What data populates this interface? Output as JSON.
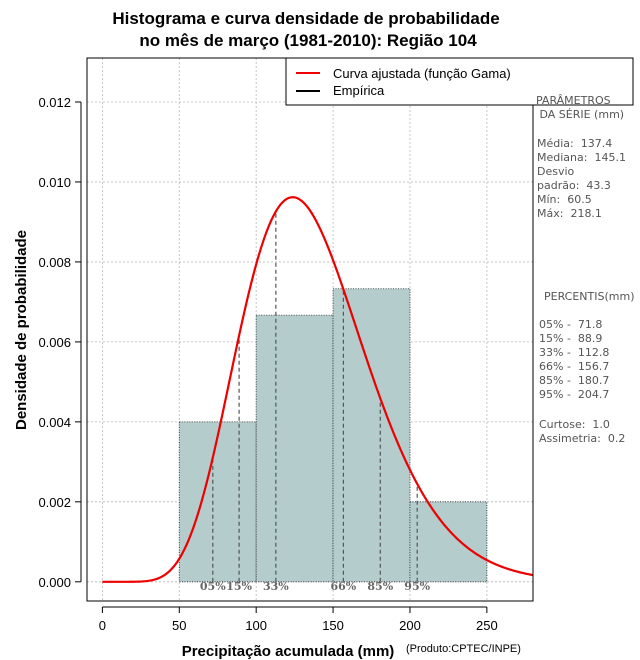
{
  "chart_data": {
    "type": "bar",
    "title": [
      "Histograma e curva densidade de probabilidade",
      "no mês de março (1981-2010): Região 104"
    ],
    "xlabel": "Precipitação acumulada (mm)",
    "ylabel": "Densidade de probabilidade",
    "credit": "(Produto:CPTEC/INPE)",
    "xlim": [
      -10,
      280
    ],
    "ylim": [
      -0.00048,
      0.0131
    ],
    "x_ticks": [
      0,
      50,
      100,
      150,
      200,
      250
    ],
    "y_ticks": [
      0.0,
      0.002,
      0.004,
      0.006,
      0.008,
      0.01,
      0.012
    ],
    "y_tick_labels": [
      "0.000",
      "0.002",
      "0.004",
      "0.006",
      "0.008",
      "0.010",
      "0.012"
    ],
    "grid": true,
    "histogram": {
      "bins": [
        [
          50,
          100
        ],
        [
          100,
          150
        ],
        [
          150,
          200
        ],
        [
          200,
          250
        ]
      ],
      "values": [
        0.004,
        0.00667,
        0.00733,
        0.002
      ],
      "color": "#b4cccc"
    },
    "gamma_fit": {
      "name": "Curva ajustada (função Gama)",
      "color": "#ee0000",
      "mean": 137.4,
      "sd": 43.3
    },
    "legend": [
      {
        "label": "Curva ajustada (função Gama)",
        "color": "#ee0000"
      },
      {
        "label": "Empírica",
        "color": "#000000"
      }
    ],
    "legend_position": "top-right",
    "percentiles": [
      {
        "label": "05%",
        "value": 71.8
      },
      {
        "label": "15%",
        "value": 88.9
      },
      {
        "label": "33%",
        "value": 112.8
      },
      {
        "label": "66%",
        "value": 156.7
      },
      {
        "label": "85%",
        "value": 180.7
      },
      {
        "label": "95%",
        "value": 204.7
      }
    ]
  },
  "side_panel": {
    "params_heading_1": "PARÂMETROS",
    "params_heading_2": " DA SÉRIE (mm)",
    "media": "Média:  137.4",
    "mediana": "Mediana:  145.1",
    "desvio_1": "Desvio",
    "desvio_2": "padrão:  43.3",
    "min": "Mín:  60.5",
    "max": "Máx:  218.1",
    "percentis_heading": "PERCENTIS(mm)",
    "p05": "05% -  71.8",
    "p15": "15% -  88.9",
    "p33": "33% -  112.8",
    "p66": "66% -  156.7",
    "p85": "85% -  180.7",
    "p95": "95% -  204.7",
    "curtose": "Curtose:  1.0",
    "assimetria": "Assimetria:  0.2"
  }
}
